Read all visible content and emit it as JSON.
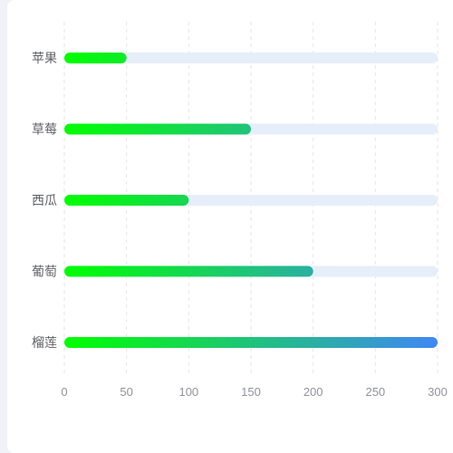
{
  "chart_data": {
    "type": "bar",
    "orientation": "horizontal",
    "title": "",
    "xlabel": "",
    "ylabel": "",
    "categories": [
      "苹果",
      "草莓",
      "西瓜",
      "葡萄",
      "榴莲"
    ],
    "values": [
      50,
      150,
      100,
      200,
      300
    ],
    "xlim": [
      0,
      300
    ],
    "xticks": [
      "0",
      "50",
      "100",
      "150",
      "200",
      "250",
      "300"
    ],
    "grid": true,
    "colors": {
      "gradient_start": "#00ff00",
      "gradient_end": "#4087f5",
      "track": "#e6eef9",
      "grid": "#e6e6e6",
      "axis_text": "#909399",
      "label_text": "#606266"
    }
  }
}
